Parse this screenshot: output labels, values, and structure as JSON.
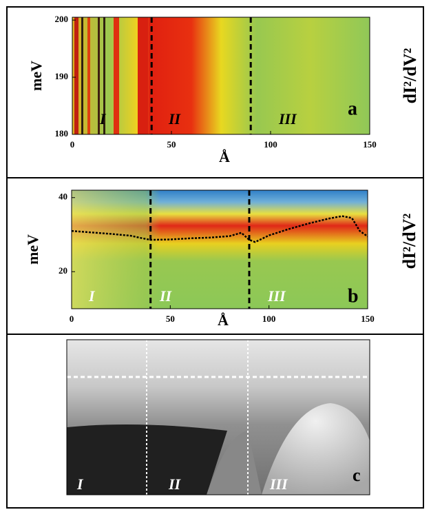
{
  "chart_data": [
    {
      "type": "heatmap",
      "panel_label": "a",
      "ylabel": "meV",
      "xlabel": "Å",
      "colorbar_label": "dI²/dV²",
      "xlim": [
        0,
        150
      ],
      "ylim": [
        180,
        200.5
      ],
      "xticks": [
        0,
        50,
        100,
        150
      ],
      "yticks": [
        180,
        190,
        200
      ],
      "boundaries": [
        40,
        90
      ],
      "regions": [
        "I",
        "II",
        "III"
      ]
    },
    {
      "type": "heatmap",
      "panel_label": "b",
      "ylabel": "meV",
      "xlabel": "Å",
      "colorbar_label": "dI²/dV²",
      "xlim": [
        0,
        150
      ],
      "ylim": [
        10,
        42
      ],
      "xticks": [
        0,
        50,
        100,
        150
      ],
      "yticks": [
        20,
        40
      ],
      "boundaries": [
        40,
        90
      ],
      "regions": [
        "I",
        "II",
        "III"
      ],
      "line": {
        "x": [
          0,
          10,
          20,
          30,
          36,
          40,
          50,
          60,
          70,
          80,
          86,
          90,
          93,
          100,
          110,
          120,
          130,
          137,
          142,
          146,
          150
        ],
        "values": [
          31,
          30.6,
          30.2,
          29.7,
          29,
          28.6,
          28.7,
          29,
          29.2,
          29.6,
          30.5,
          28.6,
          28,
          29.8,
          31.5,
          33,
          34.3,
          35,
          34.5,
          31,
          29.5
        ]
      }
    }
  ],
  "image_panel": {
    "panel_label": "c",
    "regions": [
      "I",
      "II",
      "III"
    ]
  }
}
